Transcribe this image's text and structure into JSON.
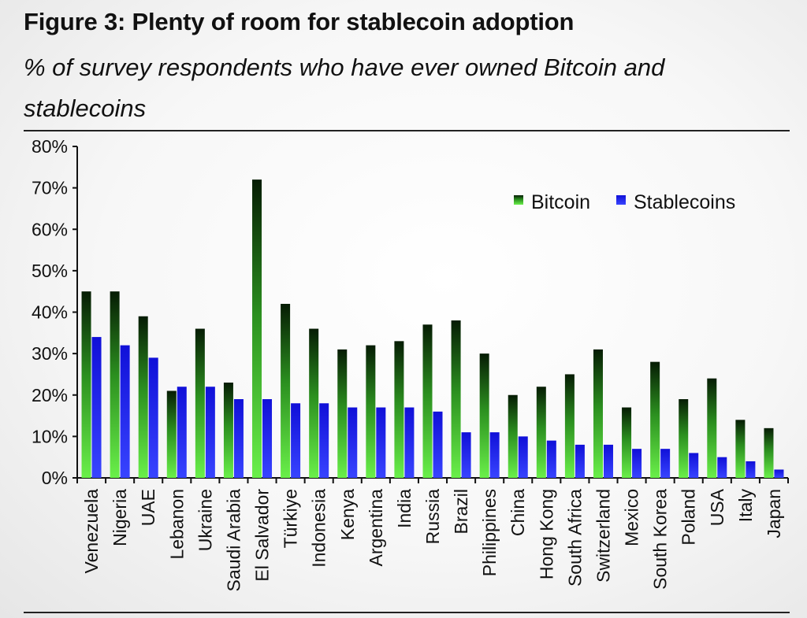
{
  "title": "Figure 3: Plenty of room for stablecoin adoption",
  "subtitle": "% of survey respondents who have ever owned Bitcoin and stablecoins",
  "chart_data": {
    "type": "bar",
    "title": "Figure 3: Plenty of room for stablecoin adoption",
    "subtitle": "% of survey respondents who have ever owned Bitcoin and stablecoins",
    "xlabel": "",
    "ylabel": "",
    "ylim": [
      0,
      80
    ],
    "yticks": [
      0,
      10,
      20,
      30,
      40,
      50,
      60,
      70,
      80
    ],
    "ytick_labels": [
      "0%",
      "10%",
      "20%",
      "30%",
      "40%",
      "50%",
      "60%",
      "70%",
      "80%"
    ],
    "legend_position": "top-right",
    "categories": [
      "Venezuela",
      "Nigeria",
      "UAE",
      "Lebanon",
      "Ukraine",
      "Saudi Arabia",
      "El Salvador",
      "Türkiye",
      "Indonesia",
      "Kenya",
      "Argentina",
      "India",
      "Russia",
      "Brazil",
      "Philippines",
      "China",
      "Hong Kong",
      "South Africa",
      "Switzerland",
      "Mexico",
      "South Korea",
      "Poland",
      "USA",
      "Italy",
      "Japan"
    ],
    "series": [
      {
        "name": "Bitcoin",
        "color": "#2a8a1f",
        "values": [
          45,
          45,
          39,
          21,
          36,
          23,
          72,
          42,
          36,
          31,
          32,
          33,
          37,
          38,
          30,
          20,
          22,
          25,
          31,
          17,
          28,
          19,
          24,
          14,
          12
        ]
      },
      {
        "name": "Stablecoins",
        "color": "#1a22e8",
        "values": [
          34,
          32,
          29,
          22,
          22,
          19,
          19,
          18,
          18,
          17,
          17,
          17,
          16,
          11,
          11,
          10,
          9,
          8,
          8,
          7,
          7,
          6,
          5,
          4,
          2
        ]
      }
    ]
  }
}
